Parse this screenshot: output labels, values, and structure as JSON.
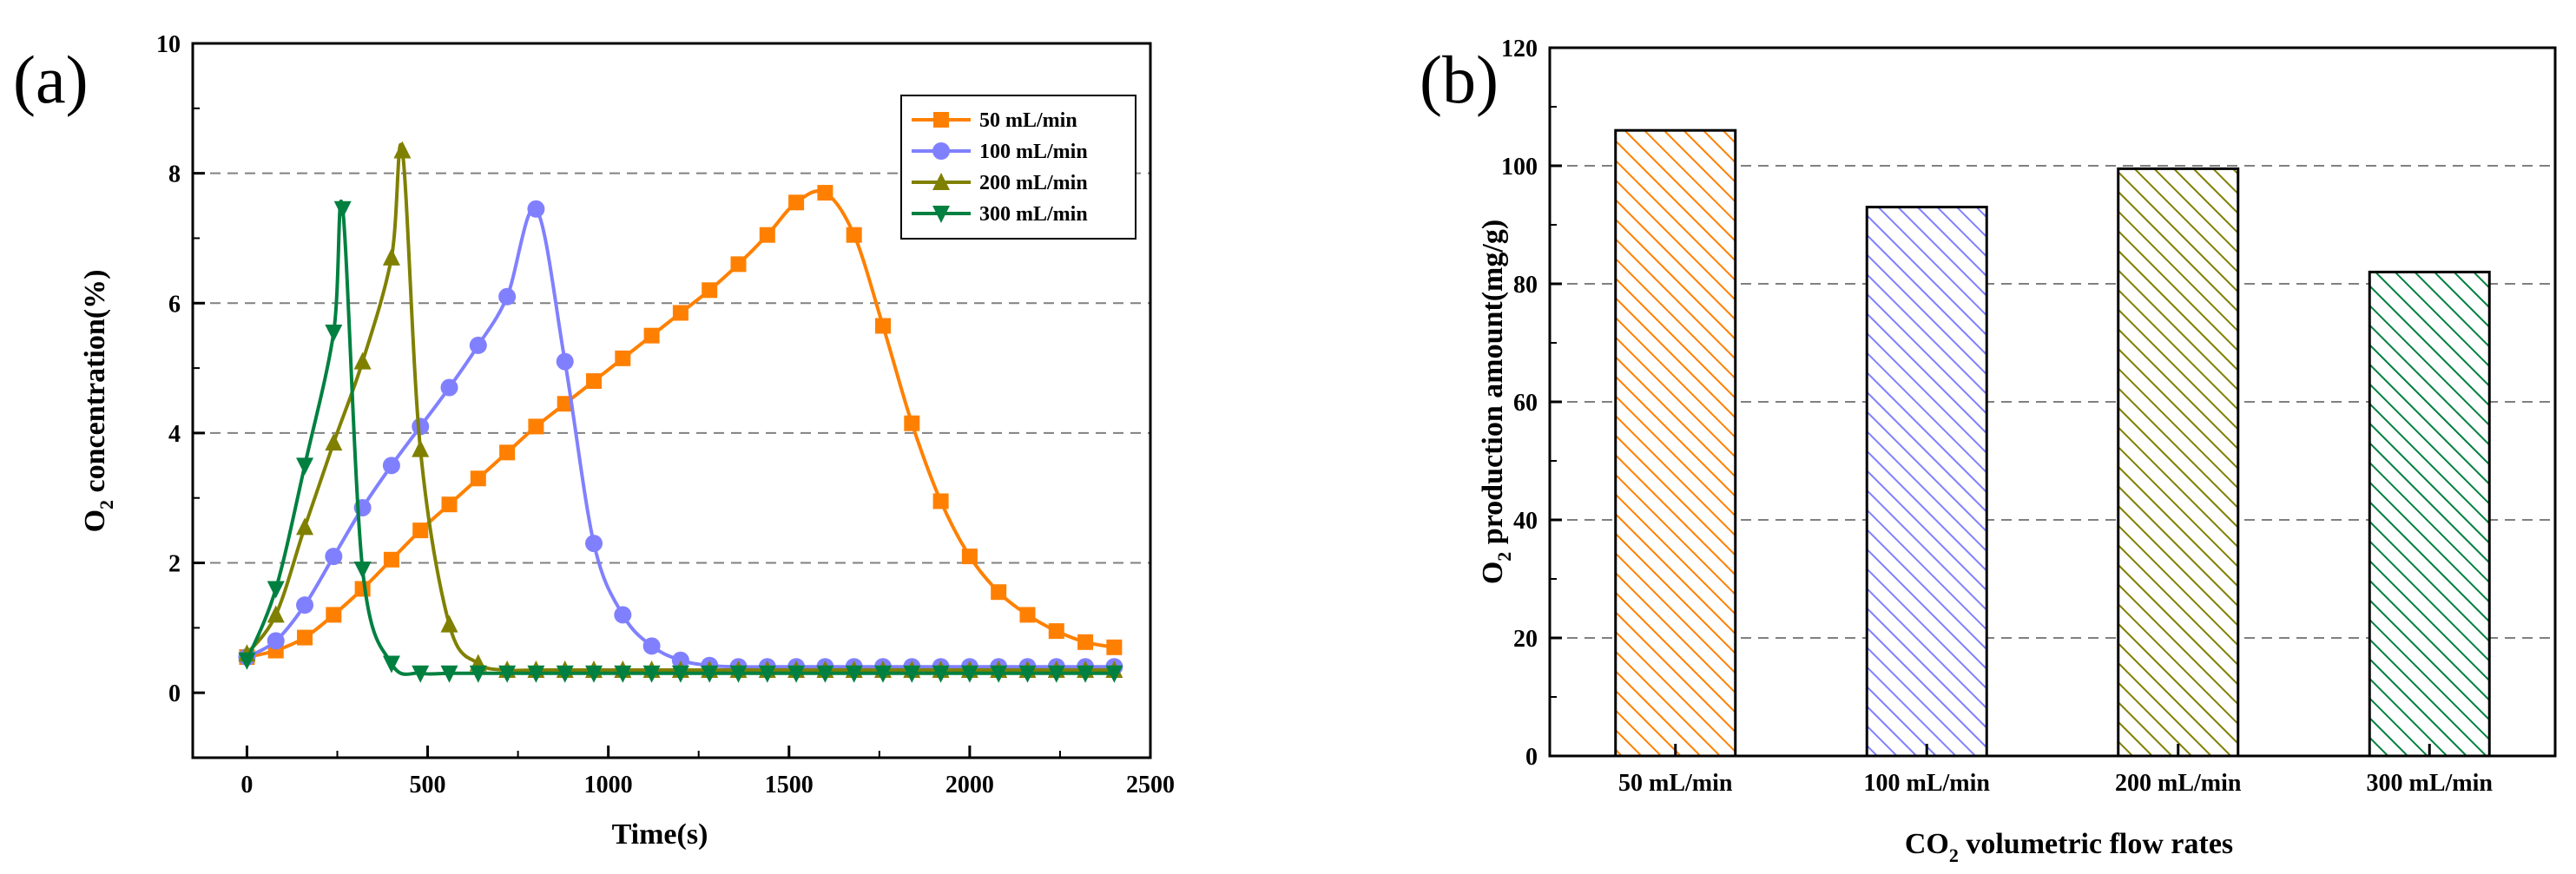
{
  "chart_data": [
    {
      "panel": "(a)",
      "type": "line",
      "xlabel": "Time(s)",
      "ylabel_prefix": "O",
      "ylabel_sub": "2",
      "ylabel_suffix": " concentration(%)",
      "xlim": [
        -150,
        2500
      ],
      "ylim": [
        -1,
        10
      ],
      "xticks": [
        0,
        500,
        1000,
        1500,
        2000,
        2500
      ],
      "yticks": [
        0,
        2,
        4,
        6,
        8,
        10
      ],
      "gridlines": [
        2,
        4,
        6,
        8
      ],
      "legend_position": "top-right",
      "series": [
        {
          "name": "50 mL/min",
          "color": "#ff8000",
          "marker": "square",
          "points": [
            [
              0,
              0.55
            ],
            [
              80,
              0.65
            ],
            [
              160,
              0.85
            ],
            [
              240,
              1.2
            ],
            [
              320,
              1.6
            ],
            [
              400,
              2.05
            ],
            [
              480,
              2.5
            ],
            [
              560,
              2.9
            ],
            [
              640,
              3.3
            ],
            [
              720,
              3.7
            ],
            [
              800,
              4.1
            ],
            [
              880,
              4.45
            ],
            [
              960,
              4.8
            ],
            [
              1040,
              5.15
            ],
            [
              1120,
              5.5
            ],
            [
              1200,
              5.85
            ],
            [
              1280,
              6.2
            ],
            [
              1360,
              6.6
            ],
            [
              1440,
              7.05
            ],
            [
              1520,
              7.55
            ],
            [
              1600,
              7.7
            ],
            [
              1680,
              7.05
            ],
            [
              1760,
              5.65
            ],
            [
              1840,
              4.15
            ],
            [
              1920,
              2.95
            ],
            [
              2000,
              2.1
            ],
            [
              2080,
              1.55
            ],
            [
              2160,
              1.2
            ],
            [
              2240,
              0.95
            ],
            [
              2320,
              0.78
            ],
            [
              2400,
              0.7
            ]
          ]
        },
        {
          "name": "100 mL/min",
          "color": "#8080ff",
          "marker": "circle",
          "points": [
            [
              0,
              0.55
            ],
            [
              80,
              0.8
            ],
            [
              160,
              1.35
            ],
            [
              240,
              2.1
            ],
            [
              320,
              2.85
            ],
            [
              400,
              3.5
            ],
            [
              480,
              4.1
            ],
            [
              560,
              4.7
            ],
            [
              640,
              5.35
            ],
            [
              720,
              6.1
            ],
            [
              800,
              7.45
            ],
            [
              880,
              5.1
            ],
            [
              960,
              2.3
            ],
            [
              1040,
              1.2
            ],
            [
              1120,
              0.72
            ],
            [
              1200,
              0.5
            ],
            [
              1280,
              0.42
            ],
            [
              1360,
              0.4
            ],
            [
              1440,
              0.4
            ],
            [
              1520,
              0.4
            ],
            [
              1600,
              0.4
            ],
            [
              1680,
              0.4
            ],
            [
              1760,
              0.4
            ],
            [
              1840,
              0.4
            ],
            [
              1920,
              0.4
            ],
            [
              2000,
              0.4
            ],
            [
              2080,
              0.4
            ],
            [
              2160,
              0.4
            ],
            [
              2240,
              0.4
            ],
            [
              2320,
              0.4
            ],
            [
              2400,
              0.4
            ]
          ]
        },
        {
          "name": "200 mL/min",
          "color": "#808000",
          "marker": "triangle-up",
          "points": [
            [
              0,
              0.6
            ],
            [
              80,
              1.2
            ],
            [
              160,
              2.55
            ],
            [
              240,
              3.85
            ],
            [
              320,
              5.1
            ],
            [
              400,
              6.7
            ],
            [
              430,
              8.35
            ],
            [
              480,
              3.75
            ],
            [
              560,
              1.05
            ],
            [
              640,
              0.45
            ],
            [
              720,
              0.35
            ],
            [
              800,
              0.35
            ],
            [
              880,
              0.35
            ],
            [
              960,
              0.35
            ],
            [
              1040,
              0.35
            ],
            [
              1120,
              0.35
            ],
            [
              1200,
              0.35
            ],
            [
              1280,
              0.35
            ],
            [
              1360,
              0.35
            ],
            [
              1440,
              0.35
            ],
            [
              1520,
              0.35
            ],
            [
              1600,
              0.35
            ],
            [
              1680,
              0.35
            ],
            [
              1760,
              0.35
            ],
            [
              1840,
              0.35
            ],
            [
              1920,
              0.35
            ],
            [
              2000,
              0.35
            ],
            [
              2080,
              0.35
            ],
            [
              2160,
              0.35
            ],
            [
              2240,
              0.35
            ],
            [
              2320,
              0.35
            ],
            [
              2400,
              0.35
            ]
          ]
        },
        {
          "name": "300 mL/min",
          "color": "#008040",
          "marker": "triangle-down",
          "points": [
            [
              0,
              0.5
            ],
            [
              80,
              1.6
            ],
            [
              160,
              3.5
            ],
            [
              240,
              5.55
            ],
            [
              265,
              7.45
            ],
            [
              320,
              1.9
            ],
            [
              400,
              0.45
            ],
            [
              480,
              0.3
            ],
            [
              560,
              0.3
            ],
            [
              640,
              0.3
            ],
            [
              720,
              0.3
            ],
            [
              800,
              0.3
            ],
            [
              880,
              0.3
            ],
            [
              960,
              0.3
            ],
            [
              1040,
              0.3
            ],
            [
              1120,
              0.3
            ],
            [
              1200,
              0.3
            ],
            [
              1280,
              0.3
            ],
            [
              1360,
              0.3
            ],
            [
              1440,
              0.3
            ],
            [
              1520,
              0.3
            ],
            [
              1600,
              0.3
            ],
            [
              1680,
              0.3
            ],
            [
              1760,
              0.3
            ],
            [
              1840,
              0.3
            ],
            [
              1920,
              0.3
            ],
            [
              2000,
              0.3
            ],
            [
              2080,
              0.3
            ],
            [
              2160,
              0.3
            ],
            [
              2240,
              0.3
            ],
            [
              2320,
              0.3
            ],
            [
              2400,
              0.3
            ]
          ]
        }
      ]
    },
    {
      "panel": "(b)",
      "type": "bar",
      "xlabel_prefix": "CO",
      "xlabel_sub": "2",
      "xlabel_suffix": " volumetric flow rates",
      "ylabel_prefix": "O",
      "ylabel_sub": "2",
      "ylabel_suffix": " production amount(mg/g)",
      "ylim": [
        0,
        120
      ],
      "yticks": [
        0,
        20,
        40,
        60,
        80,
        100,
        120
      ],
      "gridlines": [
        20,
        40,
        60,
        80,
        100
      ],
      "categories": [
        "50 mL/min",
        "100 mL/min",
        "200 mL/min",
        "300 mL/min"
      ],
      "values": [
        106,
        93,
        99.5,
        82
      ],
      "colors": [
        "#ff8000",
        "#8080ff",
        "#808000",
        "#008040"
      ],
      "pattern": "diagonal-hatch"
    }
  ]
}
